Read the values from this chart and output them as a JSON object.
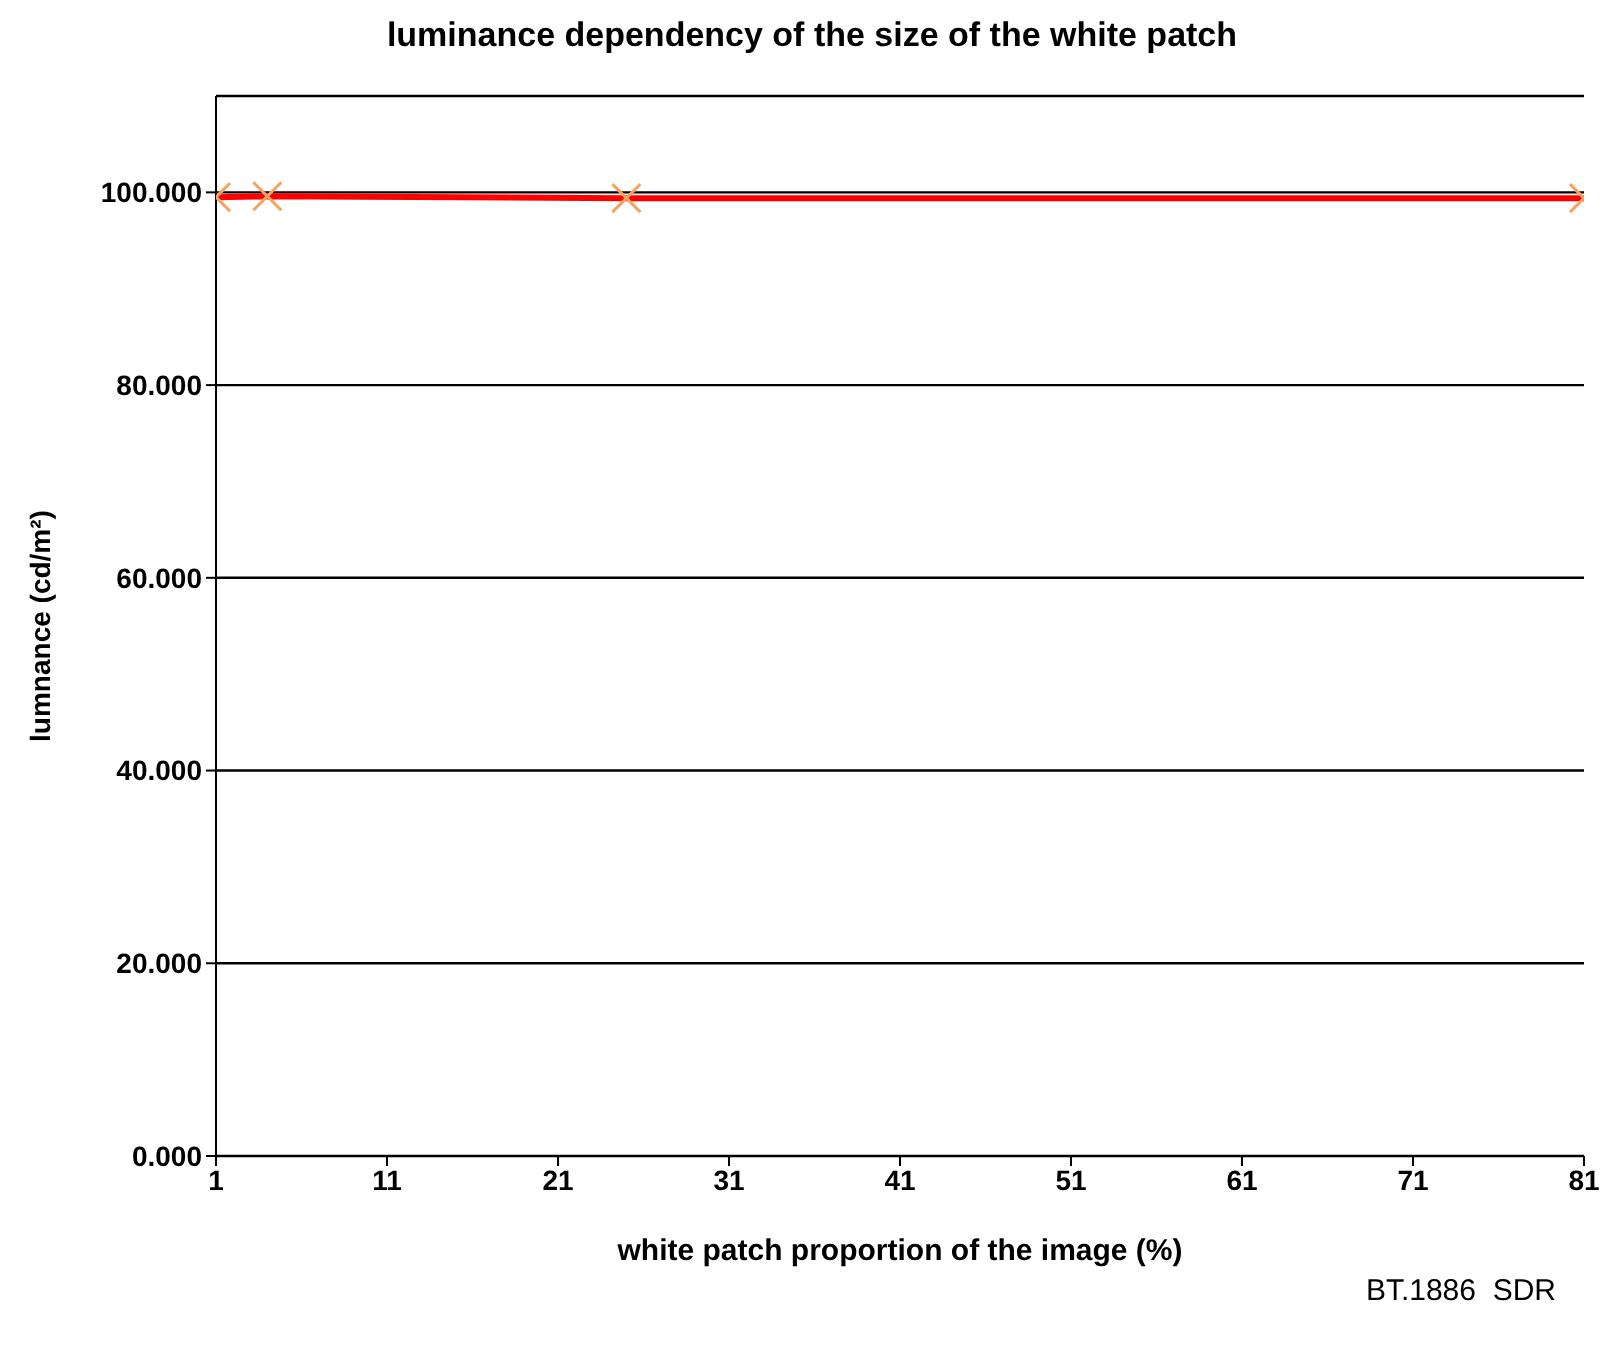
{
  "chart_data": {
    "type": "line",
    "title": "luminance dependency of the size of the white patch",
    "xlabel": "white patch proportion of the image (%)",
    "ylabel": "lumnance (cd/m²)",
    "annotations": [
      "BT.1886  SDR"
    ],
    "x": [
      1,
      4,
      25,
      81
    ],
    "series": [
      {
        "color": "#ff0000",
        "values": [
          99.5,
          99.6,
          99.4,
          99.4
        ]
      }
    ],
    "marker": "cross",
    "grid": "y",
    "legend": false,
    "xlim": [
      1,
      81
    ],
    "xticks": [
      1,
      11,
      21,
      31,
      41,
      51,
      61,
      71,
      81
    ],
    "ylim": [
      0,
      110
    ],
    "yticks": [
      {
        "value": 0,
        "label": "0.000"
      },
      {
        "value": 20,
        "label": "20.000"
      },
      {
        "value": 40,
        "label": "40.000"
      },
      {
        "value": 60,
        "label": "60.000"
      },
      {
        "value": 80,
        "label": "80.000"
      },
      {
        "value": 100,
        "label": "100.000"
      }
    ]
  }
}
